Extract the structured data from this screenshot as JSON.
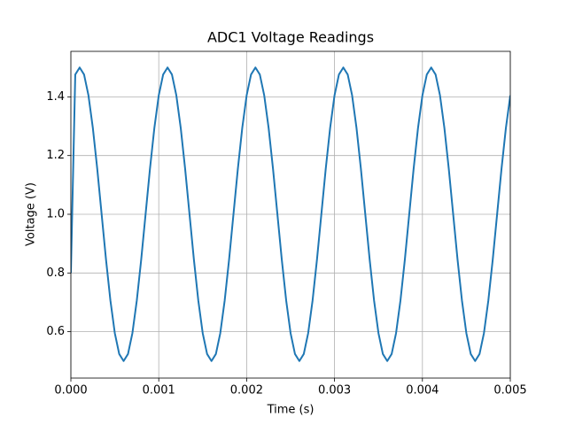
{
  "chart_data": {
    "type": "line",
    "title": "ADC1 Voltage Readings",
    "x_label": "Time (s)",
    "y_label": "Voltage (V)",
    "x": [
      0,
      5e-05,
      0.0001,
      0.00015,
      0.0002,
      0.00025,
      0.0003,
      0.00035,
      0.0004,
      0.00045,
      0.0005,
      0.00055,
      0.0006,
      0.00065,
      0.0007,
      0.00075,
      0.0008,
      0.00085,
      0.0009,
      0.00095,
      0.001,
      0.00105,
      0.0011,
      0.00115,
      0.0012,
      0.00125,
      0.0013,
      0.00135,
      0.0014,
      0.00145,
      0.0015,
      0.00155,
      0.0016,
      0.00165,
      0.0017,
      0.00175,
      0.0018,
      0.00185,
      0.0019,
      0.00195,
      0.002,
      0.00205,
      0.0021,
      0.00215,
      0.0022,
      0.00225,
      0.0023,
      0.00235,
      0.0024,
      0.00245,
      0.0025,
      0.00255,
      0.0026,
      0.00265,
      0.0027,
      0.00275,
      0.0028,
      0.00285,
      0.0029,
      0.00295,
      0.003,
      0.00305,
      0.0031,
      0.00315,
      0.0032,
      0.00325,
      0.0033,
      0.00335,
      0.0034,
      0.00345,
      0.0035,
      0.00355,
      0.0036,
      0.00365,
      0.0037,
      0.00375,
      0.0038,
      0.00385,
      0.0039,
      0.00395,
      0.004,
      0.00405,
      0.0041,
      0.00415,
      0.0042,
      0.00425,
      0.0043,
      0.00435,
      0.0044,
      0.00445,
      0.0045,
      0.00455,
      0.0046,
      0.00465,
      0.0047,
      0.00475,
      0.0048,
      0.00485,
      0.0049,
      0.00495,
      0.005
    ],
    "series": [
      {
        "name": "ADC1",
        "color": "#1f77b4",
        "values": [
          0.8,
          1.476,
          1.5,
          1.476,
          1.405,
          1.294,
          1.155,
          1.0,
          0.845,
          0.706,
          0.595,
          0.524,
          0.5,
          0.524,
          0.595,
          0.706,
          0.845,
          1.0,
          1.155,
          1.294,
          1.405,
          1.476,
          1.5,
          1.476,
          1.405,
          1.294,
          1.155,
          1.0,
          0.845,
          0.706,
          0.595,
          0.524,
          0.5,
          0.524,
          0.595,
          0.706,
          0.845,
          1.0,
          1.155,
          1.294,
          1.405,
          1.476,
          1.5,
          1.476,
          1.405,
          1.294,
          1.155,
          1.0,
          0.845,
          0.706,
          0.595,
          0.524,
          0.5,
          0.524,
          0.595,
          0.706,
          0.845,
          1.0,
          1.155,
          1.294,
          1.405,
          1.476,
          1.5,
          1.476,
          1.405,
          1.294,
          1.155,
          1.0,
          0.845,
          0.706,
          0.595,
          0.524,
          0.5,
          0.524,
          0.595,
          0.706,
          0.845,
          1.0,
          1.155,
          1.294,
          1.405,
          1.476,
          1.5,
          1.476,
          1.405,
          1.294,
          1.155,
          1.0,
          0.845,
          0.706,
          0.595,
          0.524,
          0.5,
          0.524,
          0.595,
          0.706,
          0.845,
          1.0,
          1.155,
          1.294,
          1.405
        ]
      }
    ],
    "xlim": [
      0,
      0.005
    ],
    "xticks": [
      {
        "value": 0,
        "label": "0.000"
      },
      {
        "value": 0.001,
        "label": "0.001"
      },
      {
        "value": 0.002,
        "label": "0.002"
      },
      {
        "value": 0.003,
        "label": "0.003"
      },
      {
        "value": 0.004,
        "label": "0.004"
      },
      {
        "value": 0.005,
        "label": "0.005"
      }
    ],
    "ylim": [
      0.442,
      1.555
    ],
    "yticks": [
      {
        "value": 0.6,
        "label": "0.6"
      },
      {
        "value": 0.8,
        "label": "0.8"
      },
      {
        "value": 1,
        "label": "1.0"
      },
      {
        "value": 1.2,
        "label": "1.2"
      },
      {
        "value": 1.4,
        "label": "1.4"
      }
    ],
    "grid": true
  }
}
